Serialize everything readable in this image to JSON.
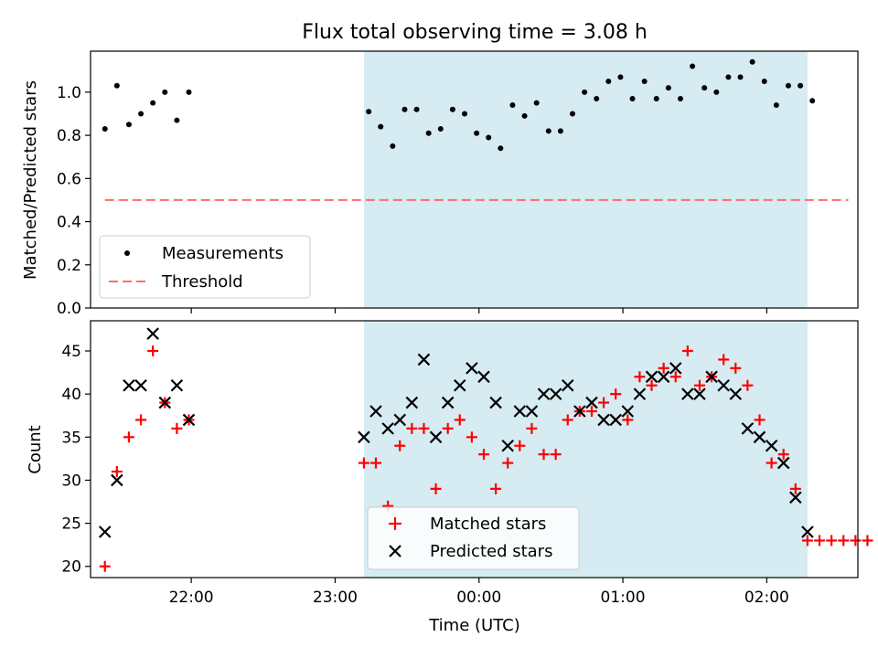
{
  "chart_data": [
    {
      "type": "scatter",
      "title": "Flux total observing time = 3.08 h",
      "ylabel": "Matched/Predicted stars",
      "xlabel": "",
      "ylim": [
        0,
        1.19
      ],
      "xlim": [
        "21:18",
        "02:38"
      ],
      "yticks": [
        "0.0",
        "0.2",
        "0.4",
        "0.6",
        "0.8",
        "1.0"
      ],
      "legend": {
        "placement": "lower-left",
        "entries": [
          "Measurements",
          "Threshold"
        ]
      },
      "shaded_span": {
        "start": "23:12",
        "end": "02:17",
        "color": "#add8e6"
      },
      "threshold": {
        "value": 0.5,
        "start": "21:24",
        "end": "02:34",
        "color": "#ff6b6b"
      },
      "series": [
        {
          "name": "Measurements",
          "color": "#000000",
          "x": [
            "21:24",
            "21:29",
            "21:34",
            "21:39",
            "21:44",
            "21:49",
            "21:54",
            "21:59",
            "23:14",
            "23:19",
            "23:24",
            "23:29",
            "23:34",
            "23:39",
            "23:44",
            "23:49",
            "23:54",
            "23:59",
            "00:04",
            "00:09",
            "00:14",
            "00:19",
            "00:24",
            "00:29",
            "00:34",
            "00:39",
            "00:44",
            "00:49",
            "00:54",
            "00:59",
            "01:04",
            "01:09",
            "01:14",
            "01:19",
            "01:24",
            "01:29",
            "01:34",
            "01:39",
            "01:44",
            "01:49",
            "01:54",
            "01:59",
            "02:04",
            "02:09",
            "02:14",
            "02:19"
          ],
          "y": [
            0.83,
            1.03,
            0.85,
            0.9,
            0.95,
            1.0,
            0.87,
            1.0,
            0.91,
            0.84,
            0.75,
            0.92,
            0.92,
            0.81,
            0.83,
            0.92,
            0.9,
            0.81,
            0.79,
            0.74,
            0.94,
            0.89,
            0.95,
            0.82,
            0.82,
            0.9,
            1.0,
            0.97,
            1.05,
            1.07,
            0.97,
            1.05,
            0.97,
            1.02,
            0.97,
            1.12,
            1.02,
            1.0,
            1.07,
            1.07,
            1.14,
            1.05,
            0.94,
            1.03,
            1.03,
            0.96
          ]
        }
      ]
    },
    {
      "type": "scatter",
      "title": "",
      "ylabel": "Count",
      "xlabel": "Time (UTC)",
      "ylim": [
        18.7,
        48.5
      ],
      "xlim": [
        "21:18",
        "02:38"
      ],
      "xticks": [
        "22:00",
        "23:00",
        "00:00",
        "01:00",
        "02:00"
      ],
      "yticks": [
        "20",
        "25",
        "30",
        "35",
        "40",
        "45"
      ],
      "legend": {
        "placement": "lower-center",
        "entries": [
          "Matched stars",
          "Predicted stars"
        ]
      },
      "shaded_span": {
        "start": "23:12",
        "end": "02:17",
        "color": "#add8e6"
      },
      "series": [
        {
          "name": "Matched stars",
          "marker": "+",
          "color": "#ff0000",
          "x": [
            "21:24",
            "21:29",
            "21:34",
            "21:39",
            "21:44",
            "21:49",
            "21:54",
            "21:59",
            "23:12",
            "23:17",
            "23:22",
            "23:27",
            "23:32",
            "23:37",
            "23:42",
            "23:47",
            "23:52",
            "23:57",
            "00:02",
            "00:07",
            "00:12",
            "00:17",
            "00:22",
            "00:27",
            "00:32",
            "00:37",
            "00:42",
            "00:47",
            "00:52",
            "00:57",
            "01:02",
            "01:07",
            "01:12",
            "01:17",
            "01:22",
            "01:27",
            "01:32",
            "01:37",
            "01:42",
            "01:47",
            "01:52",
            "01:57",
            "02:02",
            "02:07",
            "02:12",
            "02:17",
            "02:22",
            "02:27",
            "02:32",
            "02:37",
            "02:42"
          ],
          "y": [
            20,
            31,
            35,
            37,
            45,
            39,
            36,
            37,
            32,
            32,
            27,
            34,
            36,
            36,
            29,
            36,
            37,
            35,
            33,
            29,
            32,
            34,
            36,
            33,
            33,
            37,
            38,
            38,
            39,
            40,
            37,
            42,
            41,
            43,
            42,
            45,
            41,
            42,
            44,
            43,
            41,
            37,
            32,
            33,
            29,
            23,
            23,
            23,
            23,
            23,
            23
          ]
        },
        {
          "name": "Predicted stars",
          "marker": "x",
          "color": "#000000",
          "x": [
            "21:24",
            "21:29",
            "21:34",
            "21:39",
            "21:44",
            "21:49",
            "21:54",
            "21:59",
            "23:12",
            "23:17",
            "23:22",
            "23:27",
            "23:32",
            "23:37",
            "23:42",
            "23:47",
            "23:52",
            "23:57",
            "00:02",
            "00:07",
            "00:12",
            "00:17",
            "00:22",
            "00:27",
            "00:32",
            "00:37",
            "00:42",
            "00:47",
            "00:52",
            "00:57",
            "01:02",
            "01:07",
            "01:12",
            "01:17",
            "01:22",
            "01:27",
            "01:32",
            "01:37",
            "01:42",
            "01:47",
            "01:52",
            "01:57",
            "02:02",
            "02:07",
            "02:12",
            "02:17"
          ],
          "y": [
            24,
            30,
            41,
            41,
            47,
            39,
            41,
            37,
            35,
            38,
            36,
            37,
            39,
            44,
            35,
            39,
            41,
            43,
            42,
            39,
            34,
            38,
            38,
            40,
            40,
            41,
            38,
            39,
            37,
            37,
            38,
            40,
            42,
            42,
            43,
            40,
            40,
            42,
            41,
            40,
            36,
            35,
            34,
            32,
            28,
            24
          ]
        }
      ]
    }
  ]
}
